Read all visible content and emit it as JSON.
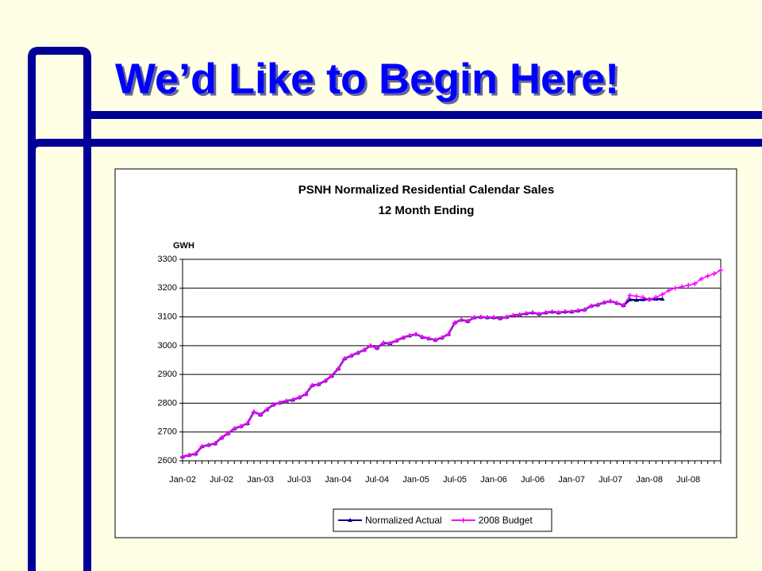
{
  "slide_title": "We’d Like to Begin Here!",
  "chart_data": {
    "type": "line",
    "title": "PSNH Normalized Residential Calendar Sales",
    "subtitle": "12 Month Ending",
    "y_label": "GWH",
    "categories": [
      "Jan-02",
      null,
      null,
      null,
      null,
      null,
      "Jul-02",
      null,
      null,
      null,
      null,
      null,
      "Jan-03",
      null,
      null,
      null,
      null,
      null,
      "Jul-03",
      null,
      null,
      null,
      null,
      null,
      "Jan-04",
      null,
      null,
      null,
      null,
      null,
      "Jul-04",
      null,
      null,
      null,
      null,
      null,
      "Jan-05",
      null,
      null,
      null,
      null,
      null,
      "Jul-05",
      null,
      null,
      null,
      null,
      null,
      "Jan-06",
      null,
      null,
      null,
      null,
      null,
      "Jul-06",
      null,
      null,
      null,
      null,
      null,
      "Jan-07",
      null,
      null,
      null,
      null,
      null,
      "Jul-07",
      null,
      null,
      null,
      null,
      null,
      "Jan-08",
      null,
      null,
      null,
      null,
      null,
      "Jul-08",
      null,
      null,
      null,
      null,
      null
    ],
    "series": [
      {
        "name": "Normalized Actual",
        "color": "#000080",
        "marker": "triangle",
        "values": [
          2614,
          2620,
          2624,
          2650,
          2655,
          2660,
          2680,
          2695,
          2712,
          2720,
          2730,
          2770,
          2760,
          2778,
          2795,
          2802,
          2808,
          2812,
          2820,
          2832,
          2862,
          2866,
          2878,
          2895,
          2920,
          2955,
          2965,
          2975,
          2985,
          3000,
          2992,
          3010,
          3008,
          3018,
          3028,
          3035,
          3040,
          3030,
          3025,
          3020,
          3028,
          3040,
          3080,
          3090,
          3085,
          3098,
          3100,
          3098,
          3098,
          3095,
          3100,
          3105,
          3108,
          3112,
          3115,
          3110,
          3115,
          3118,
          3115,
          3118,
          3118,
          3122,
          3125,
          3138,
          3142,
          3150,
          3155,
          3148,
          3140,
          3160,
          3158,
          3160,
          3162,
          3162,
          3162,
          null,
          null,
          null,
          null,
          null,
          null,
          null,
          null,
          null
        ]
      },
      {
        "name": "2008 Budget",
        "color": "#ff00ff",
        "marker": "star",
        "values": [
          2614,
          2620,
          2624,
          2650,
          2655,
          2660,
          2680,
          2695,
          2712,
          2720,
          2730,
          2770,
          2760,
          2778,
          2795,
          2802,
          2808,
          2812,
          2820,
          2832,
          2862,
          2866,
          2878,
          2895,
          2920,
          2955,
          2965,
          2975,
          2985,
          3000,
          2992,
          3010,
          3008,
          3018,
          3028,
          3035,
          3040,
          3030,
          3025,
          3020,
          3028,
          3040,
          3080,
          3090,
          3085,
          3098,
          3100,
          3098,
          3098,
          3095,
          3100,
          3105,
          3108,
          3112,
          3115,
          3110,
          3115,
          3118,
          3115,
          3118,
          3118,
          3122,
          3125,
          3138,
          3142,
          3150,
          3155,
          3148,
          3140,
          3175,
          3172,
          3168,
          3160,
          3168,
          3178,
          3192,
          3200,
          3205,
          3210,
          3215,
          3232,
          3242,
          3250,
          3262
        ]
      }
    ],
    "ylim": [
      2600,
      3300
    ],
    "yticks": [
      2600,
      2700,
      2800,
      2900,
      3000,
      3100,
      3200,
      3300
    ],
    "grid": true,
    "legend": "bottom"
  }
}
